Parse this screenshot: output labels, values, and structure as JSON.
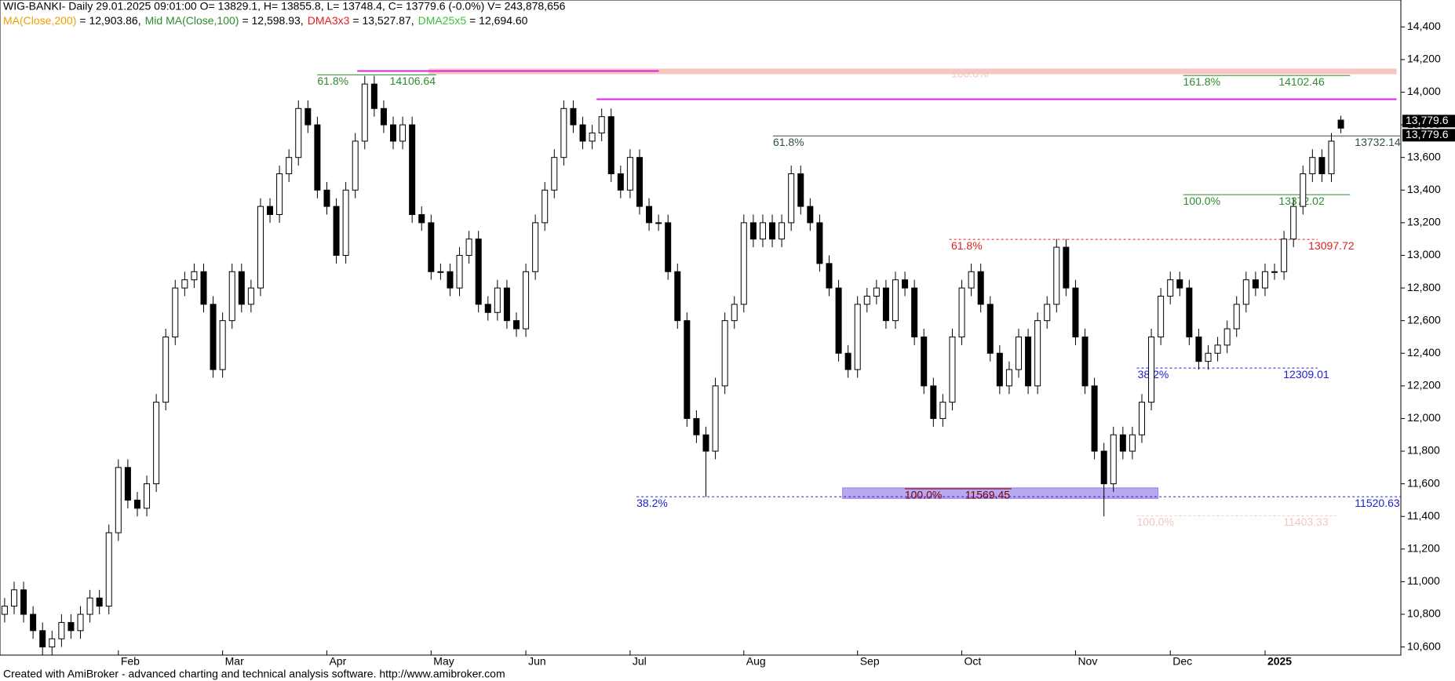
{
  "chart_data": {
    "type": "candlestick",
    "header": "WIG-BANKI- Daily 29.01.2025 09:01:00 O= 13829.1, H= 13855.8, L= 13748.4, C= 13779.6 (-0.0%) V= 243,878,656",
    "indicators": [
      {
        "name": "MA(Close,200)",
        "color": "#f0a000",
        "text": "= 12,903.86,"
      },
      {
        "name": "Mid MA(Close,100)",
        "color": "#2e8b2e",
        "text": "= 12,598.93,"
      },
      {
        "name": "DMA3x3",
        "color": "#e02020",
        "text": "= 13,527.87,"
      },
      {
        "name": "DMA25x5",
        "color": "#40c040",
        "text": "= 12,694.60"
      }
    ],
    "footer": "Created with AmiBroker - advanced charting and technical analysis software. http://www.amibroker.com",
    "categories": [
      null,
      null,
      null,
      null,
      null,
      null,
      null,
      null,
      null,
      null,
      null,
      null,
      "Feb",
      null,
      null,
      null,
      null,
      null,
      null,
      null,
      null,
      null,
      null,
      "Mar",
      null,
      null,
      null,
      null,
      null,
      null,
      null,
      null,
      null,
      null,
      "Apr",
      null,
      null,
      null,
      null,
      null,
      null,
      null,
      null,
      null,
      null,
      "May",
      null,
      null,
      null,
      null,
      null,
      null,
      null,
      null,
      null,
      "Jun",
      null,
      null,
      null,
      null,
      null,
      null,
      null,
      null,
      null,
      null,
      "Jul",
      null,
      null,
      null,
      null,
      null,
      null,
      null,
      null,
      null,
      null,
      null,
      "Aug",
      null,
      null,
      null,
      null,
      null,
      null,
      null,
      null,
      null,
      null,
      null,
      "Sep",
      null,
      null,
      null,
      null,
      null,
      null,
      null,
      null,
      null,
      null,
      "Oct",
      null,
      null,
      null,
      null,
      null,
      null,
      null,
      null,
      null,
      null,
      null,
      "Nov",
      null,
      null,
      null,
      null,
      null,
      null,
      null,
      null,
      null,
      "Dec",
      null,
      null,
      null,
      null,
      null,
      null,
      null,
      null,
      null,
      "2025",
      null,
      null,
      null,
      null,
      null,
      null,
      null,
      null
    ],
    "open": [
      10800,
      10850,
      10950,
      10800,
      10700,
      10600,
      10650,
      10750,
      10700,
      10800,
      10900,
      10850,
      11300,
      11700,
      11500,
      11450,
      11600,
      12100,
      12500,
      12800,
      12850,
      12900,
      12700,
      12300,
      12600,
      12900,
      12700,
      12800,
      13300,
      13250,
      13500,
      13600,
      13900,
      13800,
      13400,
      13300,
      13000,
      13400,
      13700,
      14050,
      13900,
      13800,
      13700,
      13800,
      13250,
      13200,
      12900,
      12900,
      12800,
      13000,
      13100,
      12700,
      12650,
      12800,
      12600,
      12550,
      12900,
      13200,
      13400,
      13600,
      13900,
      13800,
      13700,
      13750,
      13850,
      13500,
      13400,
      13600,
      13300,
      13200,
      13200,
      12900,
      12600,
      12000,
      11900,
      11800,
      12200,
      12600,
      12700,
      13200,
      13100,
      13200,
      13100,
      13200,
      13500,
      13300,
      13200,
      12950,
      12800,
      12400,
      12300,
      12700,
      12750,
      12800,
      12600,
      12850,
      12800,
      12500,
      12200,
      12000,
      12100,
      12500,
      12800,
      12900,
      12700,
      12400,
      12200,
      12300,
      12500,
      12200,
      12600,
      12700,
      13050,
      12800,
      12500,
      12200,
      11800,
      11600,
      11900,
      11800,
      11900,
      12100,
      12500,
      12750,
      12850,
      12800,
      12500,
      12350,
      12400,
      12450,
      12550,
      12700,
      12850,
      12800,
      12900,
      12900,
      13100,
      13300,
      13500,
      13600,
      13500,
      13829.1
    ],
    "high": [
      10900,
      11000,
      11000,
      10850,
      10750,
      10700,
      10800,
      10800,
      10850,
      10950,
      10950,
      11350,
      11750,
      11750,
      11550,
      11650,
      12150,
      12550,
      12850,
      12900,
      12950,
      12950,
      12750,
      12650,
      12950,
      12950,
      12850,
      13350,
      13350,
      13550,
      13650,
      13950,
      13950,
      13850,
      13450,
      13350,
      13450,
      13750,
      14100,
      14100,
      13950,
      13850,
      13850,
      13850,
      13300,
      13250,
      12950,
      12950,
      13050,
      13150,
      13150,
      12750,
      12850,
      12850,
      12650,
      12950,
      13250,
      13450,
      13650,
      13950,
      13950,
      13850,
      13800,
      13900,
      13900,
      13550,
      13650,
      13650,
      13350,
      13250,
      13250,
      12950,
      12650,
      12050,
      11950,
      12250,
      12650,
      12750,
      13250,
      13250,
      13250,
      13250,
      13250,
      13550,
      13550,
      13350,
      13250,
      13000,
      12850,
      12450,
      12750,
      12800,
      12850,
      12850,
      12900,
      12900,
      12850,
      12550,
      12250,
      12150,
      12550,
      12850,
      12950,
      12950,
      12750,
      12450,
      12350,
      12550,
      12550,
      12650,
      12750,
      13100,
      13100,
      12850,
      12550,
      12250,
      11850,
      11950,
      11950,
      11950,
      12150,
      12550,
      12800,
      12900,
      12900,
      12850,
      12550,
      12450,
      12500,
      12600,
      12750,
      12900,
      12900,
      12950,
      12950,
      13150,
      13350,
      13550,
      13650,
      13650,
      13750,
      13855.8
    ],
    "low": [
      10750,
      10800,
      10750,
      10650,
      10550,
      10550,
      10600,
      10650,
      10650,
      10750,
      10800,
      10800,
      11250,
      11450,
      11400,
      11400,
      11550,
      12050,
      12450,
      12750,
      12800,
      12650,
      12250,
      12250,
      12550,
      12650,
      12650,
      12750,
      13200,
      13200,
      13450,
      13550,
      13750,
      13350,
      13250,
      12950,
      12950,
      13350,
      13650,
      13850,
      13750,
      13650,
      13650,
      13200,
      13150,
      12850,
      12850,
      12750,
      12750,
      12950,
      12650,
      12600,
      12600,
      12550,
      12500,
      12500,
      12850,
      13150,
      13350,
      13550,
      13750,
      13650,
      13650,
      13700,
      13450,
      13350,
      13350,
      13250,
      13150,
      13150,
      12850,
      12550,
      11950,
      11850,
      11520,
      11750,
      12150,
      12550,
      12650,
      13050,
      13050,
      13050,
      13050,
      13150,
      13250,
      13150,
      12900,
      12750,
      12350,
      12250,
      12250,
      12650,
      12700,
      12550,
      12550,
      12750,
      12450,
      12150,
      11950,
      11950,
      12050,
      12450,
      12750,
      12650,
      12350,
      12150,
      12150,
      12250,
      12150,
      12150,
      12550,
      12650,
      12750,
      12450,
      12150,
      11750,
      11400,
      11550,
      11750,
      11750,
      11850,
      12050,
      12450,
      12700,
      12750,
      12450,
      12300,
      12300,
      12350,
      12400,
      12500,
      12650,
      12750,
      12750,
      12850,
      12850,
      13050,
      13250,
      13450,
      13450,
      13450,
      13748.4
    ],
    "close": [
      10850,
      10950,
      10800,
      10700,
      10600,
      10650,
      10750,
      10700,
      10800,
      10900,
      10850,
      11300,
      11700,
      11500,
      11450,
      11600,
      12100,
      12500,
      12800,
      12850,
      12900,
      12700,
      12300,
      12600,
      12900,
      12700,
      12800,
      13300,
      13250,
      13500,
      13600,
      13900,
      13800,
      13400,
      13300,
      13000,
      13400,
      13700,
      14050,
      13900,
      13800,
      13700,
      13800,
      13250,
      13200,
      12900,
      12900,
      12800,
      13000,
      13100,
      12700,
      12650,
      12800,
      12600,
      12550,
      12900,
      13200,
      13400,
      13600,
      13900,
      13800,
      13700,
      13750,
      13850,
      13500,
      13400,
      13600,
      13300,
      13200,
      13200,
      12900,
      12600,
      12000,
      11900,
      11800,
      12200,
      12600,
      12700,
      13200,
      13100,
      13200,
      13100,
      13200,
      13500,
      13300,
      13200,
      12950,
      12800,
      12400,
      12300,
      12700,
      12750,
      12800,
      12600,
      12850,
      12800,
      12500,
      12200,
      12000,
      12100,
      12500,
      12800,
      12900,
      12700,
      12400,
      12200,
      12300,
      12500,
      12200,
      12600,
      12700,
      13050,
      12800,
      12500,
      12200,
      11800,
      11600,
      11900,
      11800,
      11900,
      12100,
      12500,
      12750,
      12850,
      12800,
      12500,
      12350,
      12400,
      12450,
      12550,
      12700,
      12850,
      12800,
      12900,
      12900,
      13100,
      13300,
      13500,
      13600,
      13500,
      13700,
      13779.6
    ],
    "close_label": "13,779.6",
    "ylim": [
      10550,
      14565
    ],
    "yticks": [
      {
        "value": 10600,
        "label": "10,600"
      },
      {
        "value": 10800,
        "label": "10,800"
      },
      {
        "value": 11000,
        "label": "11,000"
      },
      {
        "value": 11200,
        "label": "11,200"
      },
      {
        "value": 11400,
        "label": "11,400"
      },
      {
        "value": 11600,
        "label": "11,600"
      },
      {
        "value": 11800,
        "label": "11,800"
      },
      {
        "value": 12000,
        "label": "12,000"
      },
      {
        "value": 12200,
        "label": "12,200"
      },
      {
        "value": 12400,
        "label": "12,400"
      },
      {
        "value": 12600,
        "label": "12,600"
      },
      {
        "value": 12800,
        "label": "12,800"
      },
      {
        "value": 13000,
        "label": "13,000"
      },
      {
        "value": 13200,
        "label": "13,200"
      },
      {
        "value": 13400,
        "label": "13,400"
      },
      {
        "value": 13600,
        "label": "13,600"
      },
      {
        "value": 13800,
        "label": "13,800"
      },
      {
        "value": 14000,
        "label": "14,000"
      },
      {
        "value": 14200,
        "label": "14,200"
      },
      {
        "value": 14400,
        "label": "14,400"
      }
    ],
    "lines": [
      {
        "value": 14130,
        "color": "#e020e0"
      },
      {
        "value": 13957,
        "color": "#e020e0"
      }
    ],
    "band": {
      "from": 14110,
      "to": 14145,
      "color": "#f4b8b0"
    },
    "zone": {
      "from": 11510,
      "to": 11575,
      "color": "#b8a8f0"
    },
    "levels": [
      {
        "name": "61.8%",
        "value": 14106.64,
        "color": "#2e8b2e",
        "style": "solid"
      },
      {
        "name": "161.8%",
        "value": 14102.46,
        "color": "#2e8b2e",
        "style": "solid"
      },
      {
        "name": "61.8%",
        "value": 13732.14,
        "color": "#2f4f4f",
        "style": "solid"
      },
      {
        "name": "100.0%",
        "value": 13372.02,
        "color": "#2e8b2e",
        "style": "solid"
      },
      {
        "name": "61.8%",
        "value": 13097.72,
        "color": "#e02020",
        "style": "dashed"
      },
      {
        "name": "38.2%",
        "value": 12309.01,
        "color": "#2020d0",
        "style": "dashed"
      },
      {
        "name": "38.2%",
        "value": 11520.63,
        "color": "#2020d0",
        "style": "dashed"
      },
      {
        "name": "100.0%",
        "value": 11569.45,
        "color": "#800000",
        "style": "solid"
      },
      {
        "name": "100.0%",
        "value": 11403.33,
        "color": "#f0c8c0",
        "style": "dashed"
      }
    ],
    "annotations": [
      {
        "text": "100.0%",
        "color": "#f0c8c0"
      }
    ]
  }
}
